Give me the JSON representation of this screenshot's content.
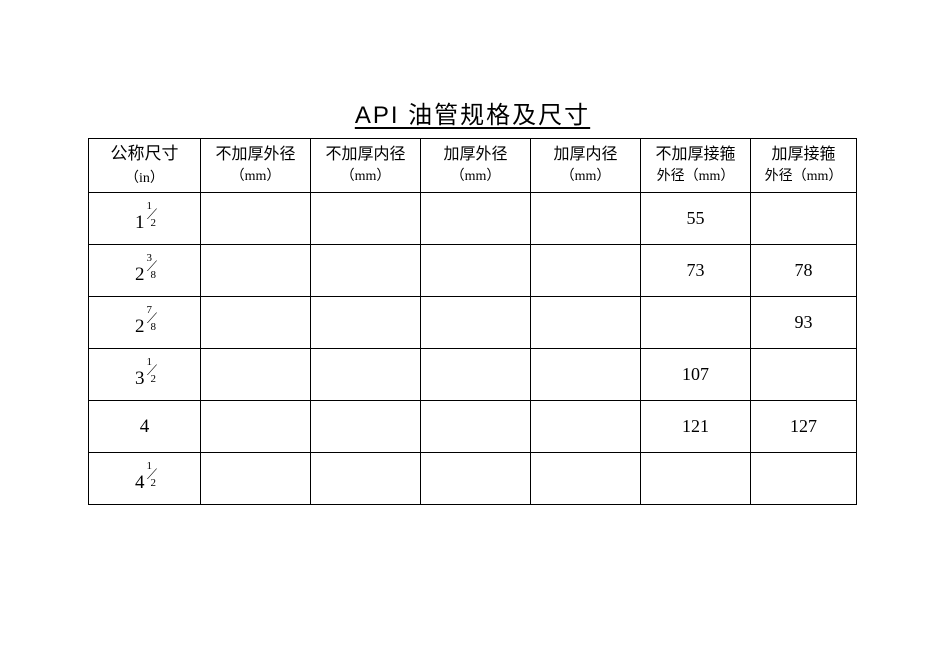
{
  "title": "API 油管规格及尺寸",
  "table": {
    "columns": [
      {
        "line1": "公称尺寸",
        "line2": "（in）"
      },
      {
        "line1": "不加厚外径",
        "line2": "（mm）"
      },
      {
        "line1": "不加厚内径",
        "line2": "（mm）"
      },
      {
        "line1": "加厚外径",
        "line2": "（mm）"
      },
      {
        "line1": "加厚内径",
        "line2": "（mm）"
      },
      {
        "line1": "不加厚接箍",
        "line2": "外径（mm）"
      },
      {
        "line1": "加厚接箍",
        "line2": "外径（mm）"
      }
    ],
    "rows": [
      {
        "size_whole": "1",
        "size_num": "1",
        "size_den": "2",
        "c1": "",
        "c2": "",
        "c3": "",
        "c4": "",
        "c5": "55",
        "c6": ""
      },
      {
        "size_whole": "2",
        "size_num": "3",
        "size_den": "8",
        "c1": "",
        "c2": "",
        "c3": "",
        "c4": "",
        "c5": "73",
        "c6": "78"
      },
      {
        "size_whole": "2",
        "size_num": "7",
        "size_den": "8",
        "c1": "",
        "c2": "",
        "c3": "",
        "c4": "",
        "c5": "",
        "c6": "93"
      },
      {
        "size_whole": "3",
        "size_num": "1",
        "size_den": "2",
        "c1": "",
        "c2": "",
        "c3": "",
        "c4": "",
        "c5": "107",
        "c6": ""
      },
      {
        "size_whole": "4",
        "size_num": "",
        "size_den": "",
        "c1": "",
        "c2": "",
        "c3": "",
        "c4": "",
        "c5": "121",
        "c6": "127"
      },
      {
        "size_whole": "4",
        "size_num": "1",
        "size_den": "2",
        "c1": "",
        "c2": "",
        "c3": "",
        "c4": "",
        "c5": "",
        "c6": ""
      }
    ]
  }
}
